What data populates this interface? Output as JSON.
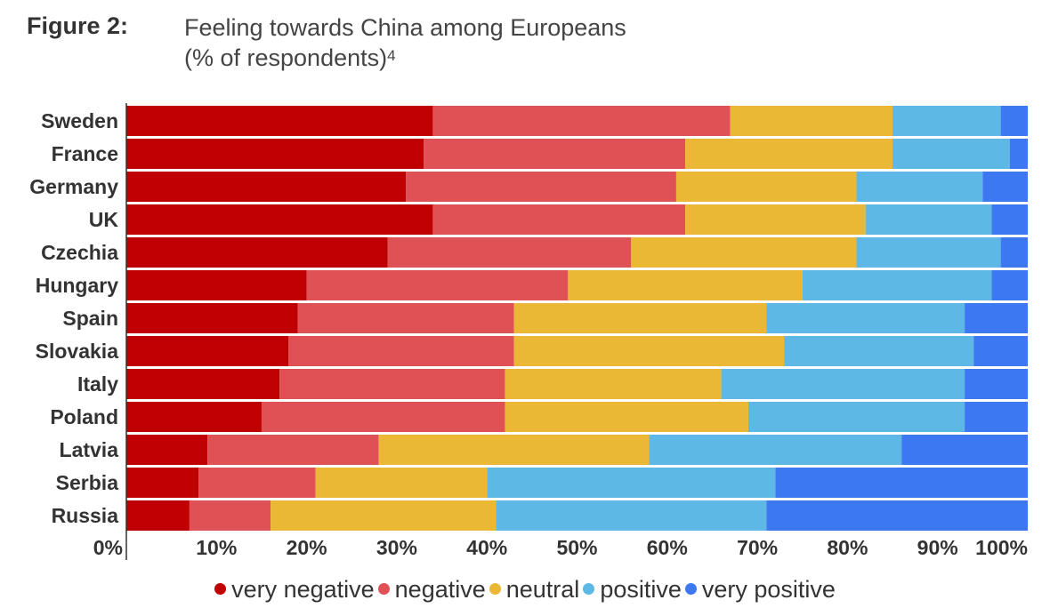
{
  "figure": {
    "label": "Figure 2:",
    "title_line1": "Feeling towards China among Europeans",
    "title_line2": "(% of respondents)",
    "title_sup": "4"
  },
  "chart_data": {
    "type": "bar",
    "orientation": "horizontal",
    "stacked": true,
    "categories": [
      "Sweden",
      "France",
      "Germany",
      "UK",
      "Czechia",
      "Hungary",
      "Spain",
      "Slovakia",
      "Italy",
      "Poland",
      "Latvia",
      "Serbia",
      "Russia"
    ],
    "series": [
      {
        "name": "very negative",
        "color": "#c00000",
        "values": [
          34,
          33,
          31,
          34,
          29,
          20,
          19,
          18,
          17,
          15,
          9,
          8,
          7
        ]
      },
      {
        "name": "negative",
        "color": "#e05155",
        "values": [
          33,
          29,
          30,
          28,
          27,
          29,
          24,
          25,
          25,
          27,
          19,
          13,
          9
        ]
      },
      {
        "name": "neutral",
        "color": "#ebb836",
        "values": [
          18,
          23,
          20,
          20,
          25,
          26,
          28,
          30,
          24,
          27,
          30,
          19,
          25
        ]
      },
      {
        "name": "positive",
        "color": "#5db8e6",
        "values": [
          12,
          13,
          14,
          14,
          16,
          21,
          22,
          21,
          27,
          24,
          28,
          32,
          30
        ]
      },
      {
        "name": "very positive",
        "color": "#3d78f3",
        "values": [
          3,
          2,
          5,
          4,
          3,
          4,
          7,
          6,
          7,
          7,
          14,
          28,
          29
        ]
      }
    ],
    "xlim": [
      0,
      100
    ],
    "xticks": [
      "0%",
      "10%",
      "20%",
      "30%",
      "40%",
      "50%",
      "60%",
      "70%",
      "80%",
      "90%",
      "100%"
    ],
    "legend_position": "bottom"
  }
}
